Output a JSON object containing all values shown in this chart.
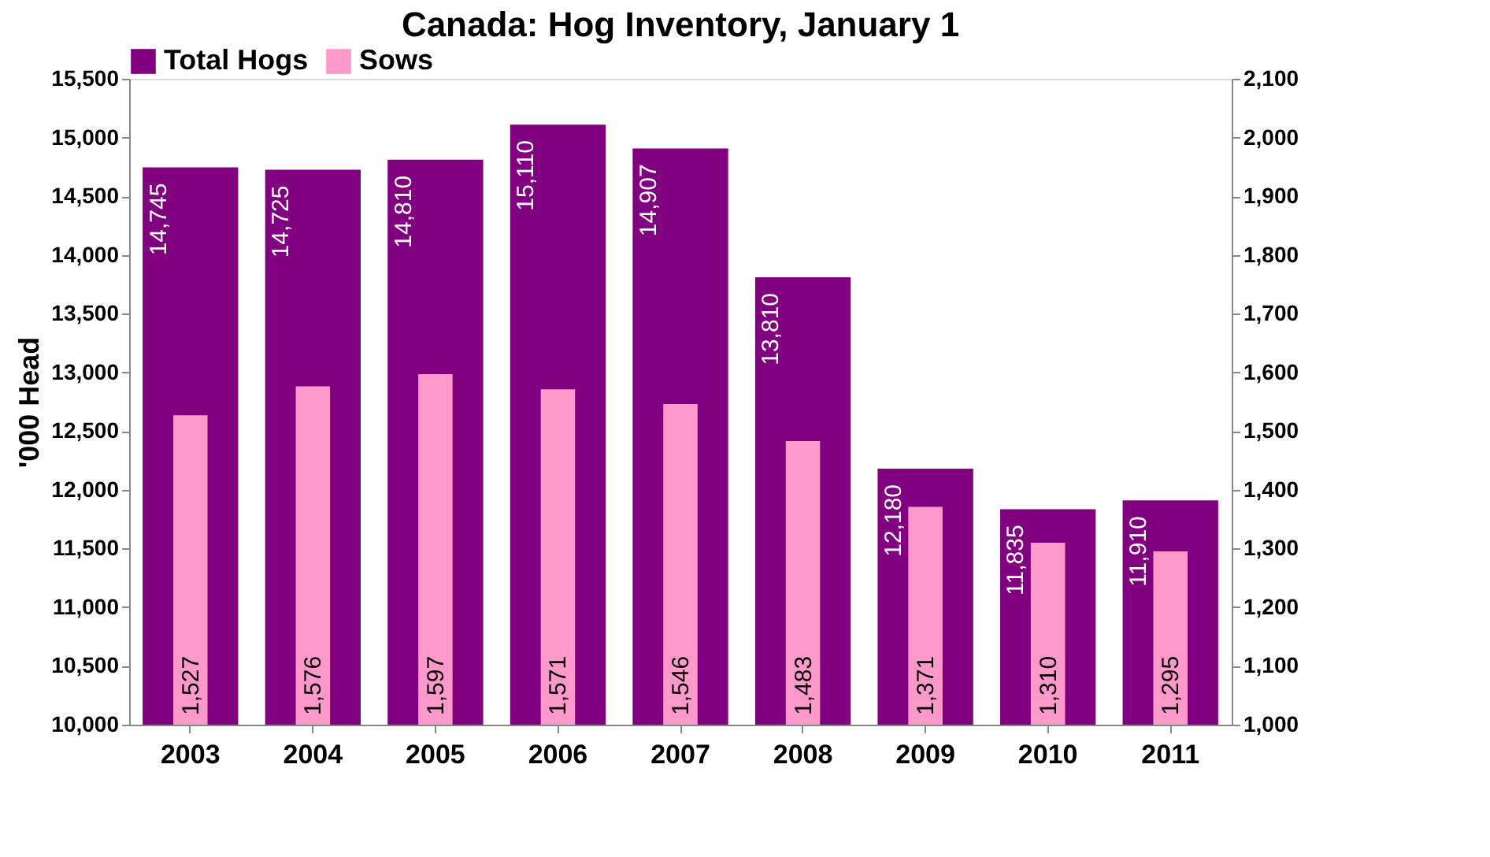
{
  "chart_data": {
    "type": "bar",
    "title": "Canada: Hog Inventory, January 1",
    "ylabel": "'000 Head",
    "categories": [
      "2003",
      "2004",
      "2005",
      "2006",
      "2007",
      "2008",
      "2009",
      "2010",
      "2011"
    ],
    "series": [
      {
        "name": "Total Hogs",
        "color": "#800080",
        "values": [
          14745,
          14725,
          14810,
          15110,
          14907,
          13810,
          12180,
          11835,
          11910
        ],
        "value_labels": [
          "14,745",
          "14,725",
          "14,810",
          "15,110",
          "14,907",
          "13,810",
          "12,180",
          "11,835",
          "11,910"
        ]
      },
      {
        "name": "Sows",
        "color": "#ff99cc",
        "axis": "y2",
        "values": [
          1527,
          1576,
          1597,
          1571,
          1546,
          1483,
          1371,
          1310,
          1295
        ],
        "value_labels": [
          "1,527",
          "1,576",
          "1,597",
          "1,571",
          "1,546",
          "1,483",
          "1,371",
          "1,310",
          "1,295"
        ]
      }
    ],
    "ylim": [
      10000,
      15500
    ],
    "yticks": [
      {
        "value": 10000,
        "label": "10,000"
      },
      {
        "value": 10500,
        "label": "10,500"
      },
      {
        "value": 11000,
        "label": "11,000"
      },
      {
        "value": 11500,
        "label": "11,500"
      },
      {
        "value": 12000,
        "label": "12,000"
      },
      {
        "value": 12500,
        "label": "12,500"
      },
      {
        "value": 13000,
        "label": "13,000"
      },
      {
        "value": 13500,
        "label": "13,500"
      },
      {
        "value": 14000,
        "label": "14,000"
      },
      {
        "value": 14500,
        "label": "14,500"
      },
      {
        "value": 15000,
        "label": "15,000"
      },
      {
        "value": 15500,
        "label": "15,500"
      }
    ],
    "y2lim": [
      1000,
      2100
    ],
    "y2ticks": [
      {
        "value": 1000,
        "label": "1,000"
      },
      {
        "value": 1100,
        "label": "1,100"
      },
      {
        "value": 1200,
        "label": "1,200"
      },
      {
        "value": 1300,
        "label": "1,300"
      },
      {
        "value": 1400,
        "label": "1,400"
      },
      {
        "value": 1500,
        "label": "1,500"
      },
      {
        "value": 1600,
        "label": "1,600"
      },
      {
        "value": 1700,
        "label": "1,700"
      },
      {
        "value": 1800,
        "label": "1,800"
      },
      {
        "value": 1900,
        "label": "1,900"
      },
      {
        "value": 2000,
        "label": "2,000"
      },
      {
        "value": 2100,
        "label": "2,100"
      }
    ],
    "legend": "top"
  }
}
